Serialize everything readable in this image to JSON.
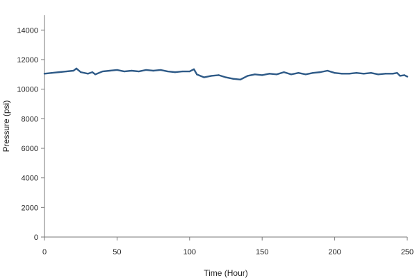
{
  "chart_data": {
    "type": "line",
    "title": "",
    "xlabel": "Time (Hour)",
    "ylabel": "Pressure (psi)",
    "xlim": [
      0,
      250
    ],
    "ylim": [
      0,
      15000
    ],
    "xticks": [
      0,
      50,
      100,
      150,
      200,
      250
    ],
    "yticks": [
      0,
      2000,
      4000,
      6000,
      8000,
      10000,
      12000,
      14000
    ],
    "grid": false,
    "legend": "none",
    "series": [
      {
        "color": "#2e5a87",
        "x": [
          0,
          5,
          10,
          15,
          20,
          22,
          25,
          30,
          33,
          35,
          40,
          45,
          50,
          55,
          60,
          65,
          70,
          75,
          80,
          85,
          90,
          95,
          100,
          103,
          105,
          110,
          115,
          120,
          125,
          130,
          135,
          140,
          145,
          150,
          155,
          160,
          165,
          170,
          175,
          180,
          185,
          190,
          195,
          200,
          205,
          210,
          215,
          220,
          225,
          230,
          235,
          240,
          243,
          245,
          248,
          250
        ],
        "y": [
          11050,
          11100,
          11150,
          11200,
          11250,
          11400,
          11150,
          11050,
          11150,
          11000,
          11200,
          11250,
          11300,
          11200,
          11250,
          11200,
          11300,
          11250,
          11300,
          11200,
          11150,
          11200,
          11200,
          11350,
          11000,
          10800,
          10900,
          10950,
          10800,
          10700,
          10650,
          10900,
          11000,
          10950,
          11050,
          11000,
          11150,
          11000,
          11100,
          11000,
          11100,
          11150,
          11250,
          11100,
          11050,
          11050,
          11100,
          11050,
          11100,
          11000,
          11050,
          11050,
          11100,
          10900,
          10950,
          10850
        ]
      }
    ]
  }
}
